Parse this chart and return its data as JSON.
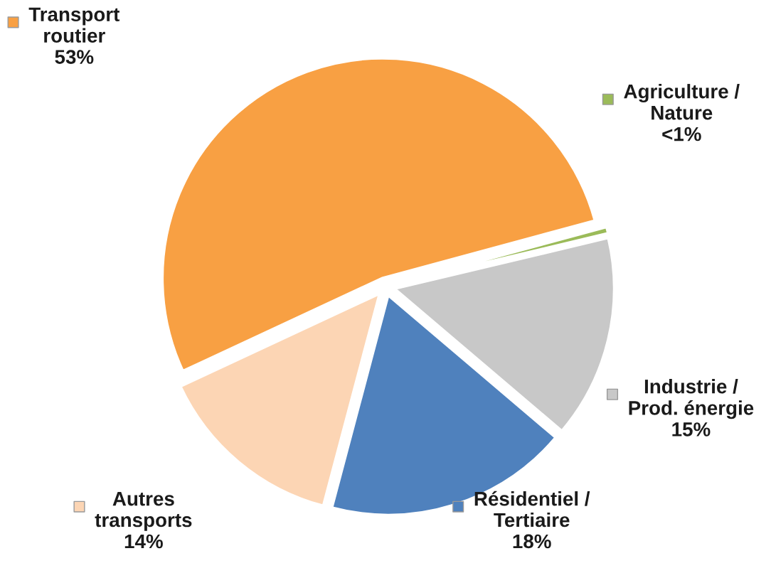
{
  "chart_data": {
    "type": "pie",
    "categories": [
      "Transport routier",
      "Agriculture / Nature",
      "Industrie / Prod. énergie",
      "Résidentiel / Tertiaire",
      "Autres transports"
    ],
    "values": [
      53,
      0.5,
      15,
      18,
      14
    ],
    "value_labels": [
      "53%",
      "<1%",
      "15%",
      "18%",
      "14%"
    ],
    "legend": "right",
    "colors": [
      "#f8a043",
      "#9bbb59",
      "#c8c8c8",
      "#4f81bd",
      "#fcd5b4"
    ]
  }
}
